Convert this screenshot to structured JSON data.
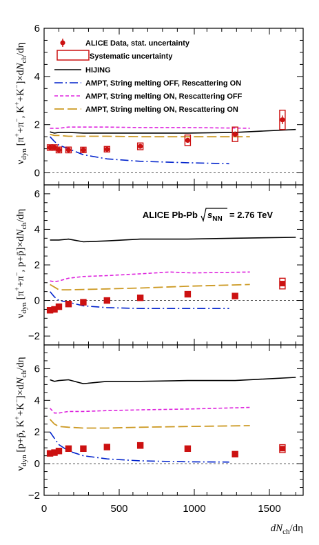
{
  "chart_data": {
    "type": "scatter",
    "xlabel": "dN_ch/dη",
    "xlim": [
      0,
      1750
    ],
    "x_ticks": [
      "0",
      "500",
      "1000",
      "1500"
    ],
    "colors": {
      "data": "#cc1111",
      "hijing": "#000000",
      "ampt_off_on": "#0022cc",
      "ampt_on_off": "#dd22dd",
      "ampt_on_on": "#cc9922",
      "zero_line": "#555555"
    },
    "legend": {
      "position": "top-left, upper panel",
      "entries": [
        {
          "label": "ALICE Data, stat. uncertainty",
          "marker": "circle"
        },
        {
          "label": "Systematic uncertainty",
          "marker": "box"
        },
        {
          "label": "HIJING",
          "marker": "solid"
        },
        {
          "label": "AMPT, String melting OFF, Rescattering ON",
          "marker": "dashdot"
        },
        {
          "label": "AMPT, String melting ON, Rescattering OFF",
          "marker": "dashed"
        },
        {
          "label": "AMPT, String melting ON, Rescattering ON",
          "marker": "longdash"
        }
      ]
    },
    "annotation": {
      "text": "ALICE Pb-Pb",
      "energy": "= 2.76 TeV"
    },
    "panels": [
      {
        "ylabel": "ν_dyn [π⁺+π⁻, K⁺+K⁻]×dN_ch/dη",
        "ylim": [
          -0.5,
          6
        ],
        "y_ticks": [
          0,
          2,
          4,
          6
        ],
        "data": {
          "x": [
            40,
            70,
            100,
            165,
            265,
            425,
            650,
            970,
            1290,
            1610
          ],
          "y": [
            1.05,
            1.05,
            0.95,
            0.95,
            0.95,
            0.98,
            1.1,
            1.35,
            1.6,
            2.2
          ],
          "stat": [
            0.06,
            0.06,
            0.06,
            0.06,
            0.05,
            0.05,
            0.07,
            0.1,
            0.12,
            0.18
          ],
          "sys": [
            0.1,
            0.1,
            0.12,
            0.12,
            0.1,
            0.1,
            0.14,
            0.22,
            0.3,
            0.4
          ]
        },
        "series": [
          {
            "name": "HIJING",
            "x": [
              40,
              70,
              100,
              165,
              265,
              425,
              650,
              970,
              1290,
              1700
            ],
            "y": [
              1.7,
              1.65,
              1.68,
              1.68,
              1.65,
              1.65,
              1.65,
              1.65,
              1.68,
              1.8
            ]
          },
          {
            "name": "AMPT, String melting OFF, Rescattering ON",
            "x": [
              40,
              70,
              100,
              165,
              265,
              425,
              650,
              970,
              1250
            ],
            "y": [
              1.5,
              1.3,
              1.15,
              1.0,
              0.75,
              0.58,
              0.48,
              0.42,
              0.38
            ]
          },
          {
            "name": "AMPT, String melting ON, Rescattering OFF",
            "x": [
              40,
              70,
              100,
              165,
              265,
              425,
              650,
              970,
              1390
            ],
            "y": [
              1.85,
              1.85,
              1.85,
              1.9,
              1.9,
              1.9,
              1.88,
              1.88,
              1.85
            ]
          },
          {
            "name": "AMPT, String melting ON, Rescattering ON",
            "x": [
              40,
              70,
              100,
              165,
              265,
              425,
              650,
              970,
              1390
            ],
            "y": [
              1.6,
              1.55,
              1.55,
              1.52,
              1.52,
              1.52,
              1.5,
              1.5,
              1.5
            ]
          }
        ]
      },
      {
        "ylabel": "ν_dyn [π⁺+π⁻, p+p̄]×dN_ch/dη",
        "ylim": [
          -2.5,
          6.5
        ],
        "y_ticks": [
          -2,
          0,
          2,
          4,
          6
        ],
        "data": {
          "x": [
            40,
            70,
            100,
            165,
            265,
            425,
            650,
            970,
            1290,
            1610
          ],
          "y": [
            -0.55,
            -0.5,
            -0.35,
            -0.2,
            -0.1,
            0.0,
            0.15,
            0.35,
            0.25,
            0.95
          ],
          "stat": [
            0.1,
            0.08,
            0.08,
            0.07,
            0.06,
            0.06,
            0.07,
            0.1,
            0.1,
            0.15
          ],
          "sys": [
            0.1,
            0.1,
            0.1,
            0.1,
            0.1,
            0.1,
            0.12,
            0.14,
            0.14,
            0.3
          ]
        },
        "series": [
          {
            "name": "HIJING",
            "x": [
              40,
              70,
              100,
              165,
              265,
              425,
              650,
              970,
              1290,
              1700
            ],
            "y": [
              3.4,
              3.4,
              3.4,
              3.45,
              3.3,
              3.35,
              3.45,
              3.45,
              3.5,
              3.55
            ]
          },
          {
            "name": "AMPT, String melting OFF, Rescattering ON",
            "x": [
              40,
              70,
              100,
              165,
              265,
              425,
              650,
              970,
              1250
            ],
            "y": [
              0.5,
              0.2,
              0.0,
              -0.1,
              -0.3,
              -0.4,
              -0.45,
              -0.45,
              -0.45
            ]
          },
          {
            "name": "AMPT, String melting ON, Rescattering OFF",
            "x": [
              40,
              70,
              100,
              165,
              265,
              425,
              650,
              850,
              1000,
              1390
            ],
            "y": [
              1.1,
              1.05,
              1.1,
              1.25,
              1.35,
              1.4,
              1.5,
              1.6,
              1.55,
              1.6
            ]
          },
          {
            "name": "AMPT, String melting ON, Rescattering ON",
            "x": [
              40,
              70,
              100,
              165,
              265,
              425,
              650,
              970,
              1390
            ],
            "y": [
              0.9,
              0.75,
              0.6,
              0.6,
              0.62,
              0.65,
              0.7,
              0.8,
              0.9
            ]
          }
        ]
      },
      {
        "ylabel": "ν_dyn [p+p̄, K⁺+K⁻]×dN_ch/dη",
        "ylim": [
          -2,
          7.5
        ],
        "y_ticks": [
          -2,
          0,
          2,
          4,
          6
        ],
        "data": {
          "x": [
            40,
            70,
            100,
            165,
            265,
            425,
            650,
            970,
            1290,
            1610
          ],
          "y": [
            0.65,
            0.7,
            0.8,
            0.95,
            0.95,
            1.05,
            1.15,
            0.95,
            0.6,
            0.95
          ],
          "stat": [
            0.08,
            0.08,
            0.08,
            0.08,
            0.07,
            0.07,
            0.1,
            0.1,
            0.1,
            0.15
          ],
          "sys": [
            0.1,
            0.1,
            0.1,
            0.12,
            0.12,
            0.14,
            0.18,
            0.14,
            0.12,
            0.25
          ]
        },
        "series": [
          {
            "name": "HIJING",
            "x": [
              40,
              70,
              100,
              165,
              265,
              425,
              650,
              970,
              1290,
              1700
            ],
            "y": [
              5.3,
              5.2,
              5.25,
              5.3,
              5.05,
              5.2,
              5.2,
              5.25,
              5.25,
              5.45
            ]
          },
          {
            "name": "AMPT, String melting OFF, Rescattering ON",
            "x": [
              40,
              70,
              100,
              165,
              265,
              425,
              650,
              970,
              1250
            ],
            "y": [
              2.0,
              1.6,
              1.2,
              0.8,
              0.5,
              0.3,
              0.18,
              0.12,
              0.1
            ]
          },
          {
            "name": "AMPT, String melting ON, Rescattering OFF",
            "x": [
              40,
              70,
              100,
              165,
              265,
              425,
              650,
              970,
              1390
            ],
            "y": [
              3.5,
              3.2,
              3.2,
              3.3,
              3.3,
              3.35,
              3.4,
              3.45,
              3.55
            ]
          },
          {
            "name": "AMPT, String melting ON, Rescattering ON",
            "x": [
              40,
              70,
              100,
              165,
              265,
              425,
              650,
              970,
              1390
            ],
            "y": [
              2.8,
              2.5,
              2.35,
              2.3,
              2.25,
              2.25,
              2.3,
              2.35,
              2.4
            ]
          }
        ]
      }
    ]
  }
}
